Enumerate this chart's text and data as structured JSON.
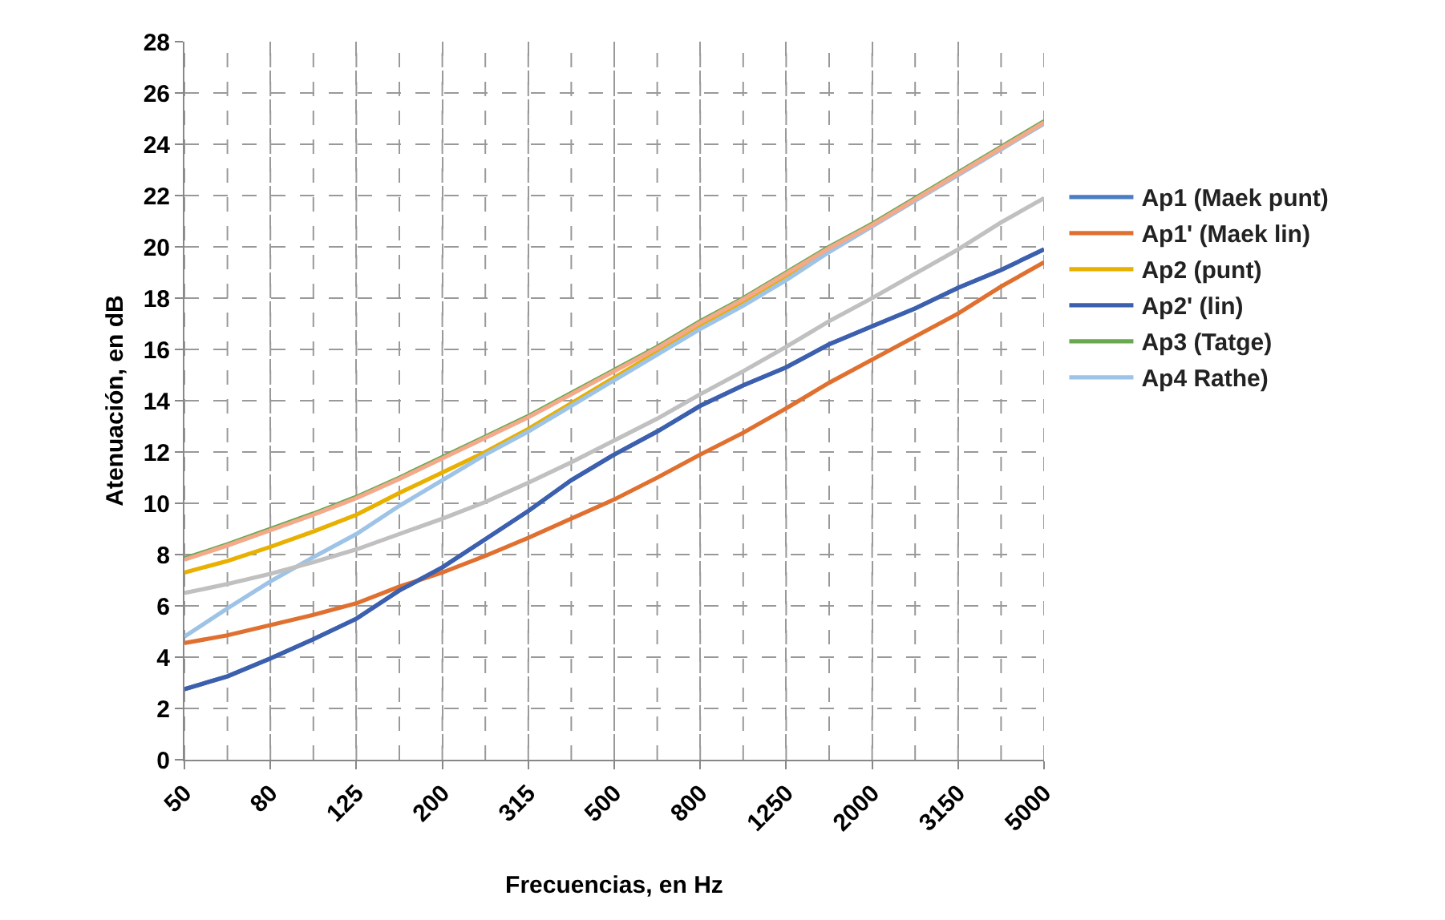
{
  "chart_data": {
    "type": "line",
    "xlabel": "Frecuencias, en Hz",
    "ylabel": "Atenuación, en dB",
    "categories": [
      "50",
      null,
      "80",
      null,
      "125",
      null,
      "200",
      null,
      "315",
      null,
      "500",
      null,
      "800",
      null,
      "1250",
      null,
      "2000",
      null,
      "3150",
      null,
      "5000"
    ],
    "ylim": [
      0,
      28
    ],
    "yticks": [
      0,
      2,
      4,
      6,
      8,
      10,
      12,
      14,
      16,
      18,
      20,
      22,
      24,
      26,
      28
    ],
    "grid": true,
    "legend": "right",
    "line_style": "solid",
    "marker": "none",
    "series": [
      {
        "name": "Ap1 (Maek punt)",
        "color": "#4a7ec4",
        "values": [
          2.75,
          3.25,
          3.95,
          4.7,
          5.5,
          6.6,
          7.5,
          8.6,
          9.7,
          10.9,
          11.9,
          12.8,
          13.8,
          14.6,
          15.3,
          16.2,
          16.9,
          17.6,
          18.4,
          19.1,
          19.9
        ]
      },
      {
        "name": "Ap1' (Maek lin)",
        "color": "#e07030",
        "values": [
          4.55,
          4.85,
          5.25,
          5.65,
          6.1,
          6.75,
          7.3,
          7.95,
          8.65,
          9.4,
          10.15,
          11.0,
          11.9,
          12.75,
          13.7,
          14.7,
          15.6,
          16.5,
          17.4,
          18.45,
          19.4
        ]
      },
      {
        "name": "Ap2 (punt)",
        "color": "#e8b000",
        "values": [
          7.3,
          7.75,
          8.3,
          8.9,
          9.55,
          10.4,
          11.2,
          12.0,
          12.9,
          13.9,
          14.9,
          15.9,
          16.9,
          17.8,
          18.8,
          19.9,
          20.9,
          null,
          null,
          null,
          null
        ]
      },
      {
        "name": "Ap2' (lin)",
        "color": "#3c5fae",
        "values": [
          2.75,
          3.25,
          3.95,
          4.7,
          5.5,
          6.6,
          7.5,
          8.6,
          9.7,
          10.9,
          11.9,
          12.8,
          13.8,
          14.6,
          15.3,
          16.2,
          16.9,
          17.6,
          18.4,
          19.1,
          19.9
        ]
      },
      {
        "name": "Ap3 (Tatge)",
        "color": "#6aa84f",
        "values": [
          7.85,
          8.4,
          9.0,
          9.6,
          10.25,
          11.0,
          11.8,
          12.6,
          13.4,
          14.3,
          15.2,
          16.1,
          17.1,
          18.0,
          19.0,
          20.0,
          20.9,
          21.9,
          22.9,
          23.9,
          24.9
        ]
      },
      {
        "name": "Ap4 Rathe)",
        "color": "#9dc3e6",
        "values": [
          4.8,
          5.9,
          6.95,
          7.9,
          8.8,
          9.9,
          10.9,
          11.9,
          12.8,
          13.8,
          14.8,
          15.8,
          16.8,
          17.7,
          18.7,
          19.8,
          20.8,
          21.8,
          22.8,
          23.8,
          24.8
        ]
      },
      {
        "color": "#f4a98a",
        "values": [
          7.8,
          8.35,
          8.95,
          9.55,
          10.2,
          10.95,
          11.75,
          12.55,
          13.35,
          14.25,
          15.15,
          16.05,
          17.05,
          17.95,
          18.95,
          19.95,
          20.85,
          21.85,
          22.85,
          23.85,
          24.85
        ]
      },
      {
        "color": "#c0c0c0",
        "values": [
          6.5,
          6.85,
          7.25,
          7.7,
          8.2,
          8.8,
          9.4,
          10.05,
          10.8,
          11.6,
          12.45,
          13.3,
          14.25,
          15.15,
          16.1,
          17.1,
          18.0,
          18.95,
          19.9,
          20.95,
          21.9
        ]
      }
    ]
  }
}
